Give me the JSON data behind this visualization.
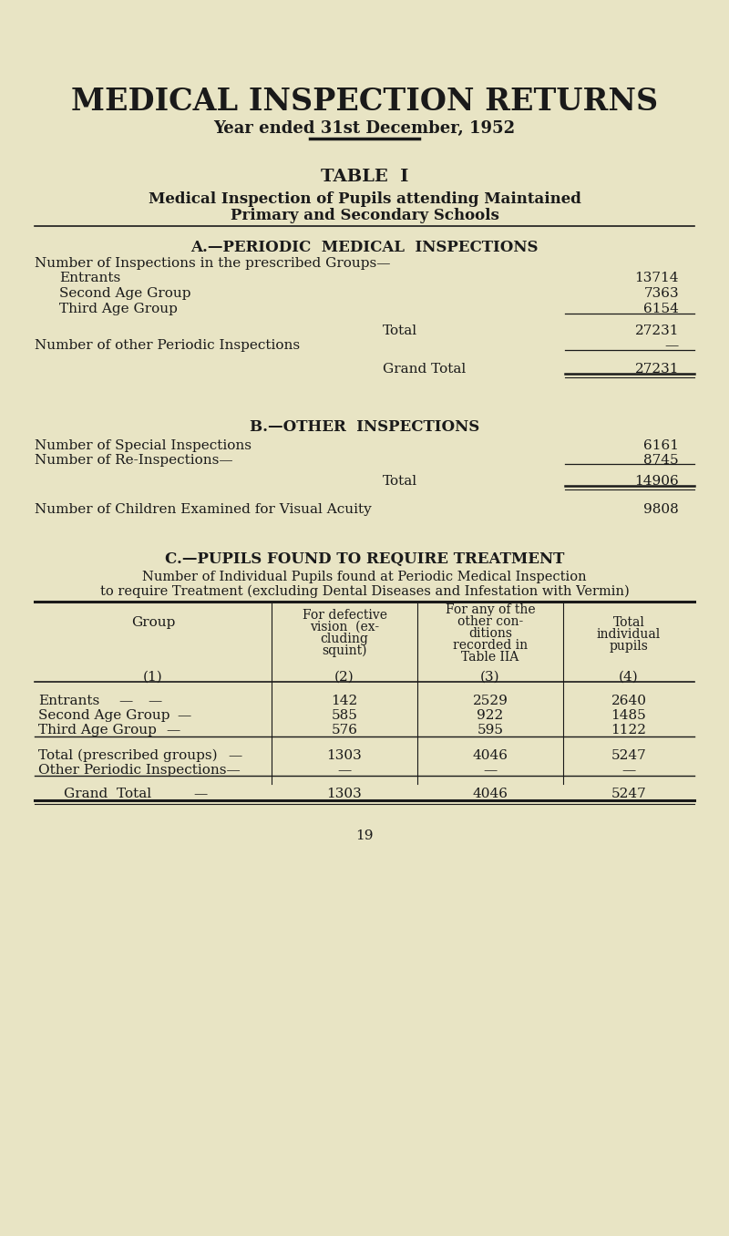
{
  "bg_color": "#e8e4c4",
  "text_color": "#1a1a1a",
  "title": "MEDICAL INSPECTION RETURNS",
  "subtitle": "Year ended 31st December, 1952",
  "table_title": "TABLE  I",
  "table_subtitle1": "Medical Inspection of Pupils attending Maintained",
  "table_subtitle2": "Primary and Secondary Schools",
  "section_a_title": "A.—PERIODIC  MEDICAL  INSPECTIONS",
  "section_a_sub": "Number of Inspections in the prescribed Groups—",
  "entrants_label": "Entrants",
  "second_age_label": "Second Age Group",
  "third_age_label": "Third Age Group",
  "entrants_val": "13714",
  "second_age_val": "7363",
  "third_age_val": "6154",
  "total_label": "Total",
  "total_val": "27231",
  "other_periodic_label": "Number of other Periodic Inspections",
  "other_periodic_val": "—",
  "grand_total_label": "Grand Total",
  "grand_total_val": "27231",
  "section_b_title": "B.—OTHER  INSPECTIONS",
  "special_inspections_label": "Number of Special Inspections",
  "special_inspections_val": "6161",
  "reinspections_label": "Number of Re-Inspections—",
  "reinspections_val": "8745",
  "b_total_label": "Total",
  "b_total_val": "14906",
  "visual_acuity_label": "Number of Children Examined for Visual Acuity",
  "visual_acuity_val": "9808",
  "section_c_title": "C.—PUPILS FOUND TO REQUIRE TREATMENT",
  "section_c_sub1": "Number of Individual Pupils found at Periodic Medical Inspection",
  "section_c_sub2": "to require Treatment (excluding Dental Diseases and Infestation with Vermin)",
  "col_header_group": "Group",
  "col_header_1": "(1)",
  "col_header_2_line1": "For defective",
  "col_header_2_line2": "vision  (ex-",
  "col_header_2_line3": "cluding",
  "col_header_2_line4": "squint)",
  "col_header_2_num": "(2)",
  "col_header_3_line1": "For any of the",
  "col_header_3_line2": "other con-",
  "col_header_3_line3": "ditions",
  "col_header_3_line4": "recorded in",
  "col_header_3_line5": "Table IIA",
  "col_header_3_num": "(3)",
  "col_header_4_line1": "Total",
  "col_header_4_line2": "individual",
  "col_header_4_line3": "pupils",
  "col_header_4_num": "(4)",
  "page_number": "19"
}
